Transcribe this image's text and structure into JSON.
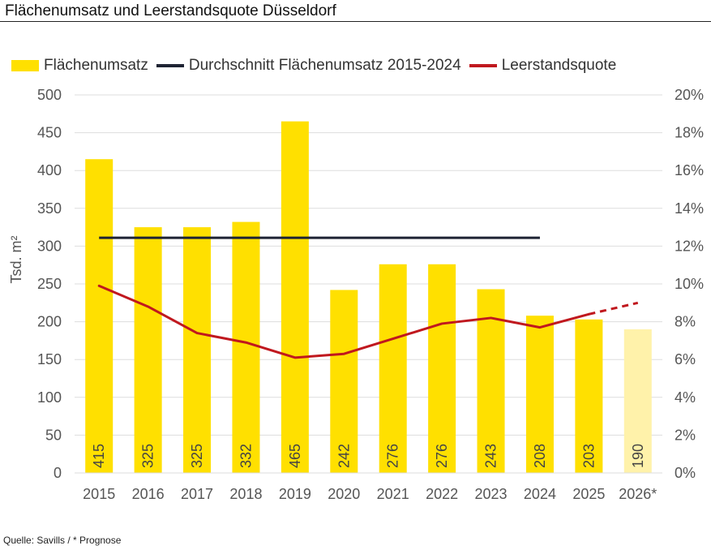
{
  "title": "Flächenumsatz und Leerstandsquote Düsseldorf",
  "source": "Quelle: Savills / * Prognose",
  "chart_data": {
    "type": "bar",
    "title": "Flächenumsatz und Leerstandsquote Düsseldorf",
    "categories": [
      "2015",
      "2016",
      "2017",
      "2018",
      "2019",
      "2020",
      "2021",
      "2022",
      "2023",
      "2024",
      "2025",
      "2026*"
    ],
    "ylabel": "Tsd. m²",
    "ylim": [
      0,
      500
    ],
    "y_ticks": [
      "0",
      "50",
      "100",
      "150",
      "200",
      "250",
      "300",
      "350",
      "400",
      "450",
      "500"
    ],
    "y2lim": [
      0,
      20
    ],
    "y2_ticks": [
      "0%",
      "2%",
      "4%",
      "6%",
      "8%",
      "10%",
      "12%",
      "14%",
      "16%",
      "18%",
      "20%"
    ],
    "grid": true,
    "legend_position": "top-left",
    "series": [
      {
        "name": "Flächenumsatz",
        "type": "bar",
        "axis": "left",
        "values": [
          415,
          325,
          325,
          332,
          465,
          242,
          276,
          276,
          243,
          208,
          203,
          190
        ],
        "labels": [
          "415",
          "325",
          "325",
          "332",
          "465",
          "242",
          "276",
          "276",
          "243",
          "208",
          "203",
          "190"
        ],
        "color": "#FFE000",
        "forecast_color": "#FFF2AA"
      },
      {
        "name": "Durchschnitt Flächenumsatz 2015-2024",
        "type": "line",
        "axis": "left",
        "x_range": [
          "2015",
          "2024"
        ],
        "value": 311,
        "color": "#1E2333"
      },
      {
        "name": "Leerstandsquote",
        "type": "line",
        "axis": "right",
        "unit": "%",
        "values": [
          9.9,
          8.8,
          7.4,
          6.9,
          6.1,
          6.3,
          7.1,
          7.9,
          8.2,
          7.7,
          8.4,
          9.0
        ],
        "forecast_from": "2025",
        "color": "#C0181E"
      }
    ]
  }
}
